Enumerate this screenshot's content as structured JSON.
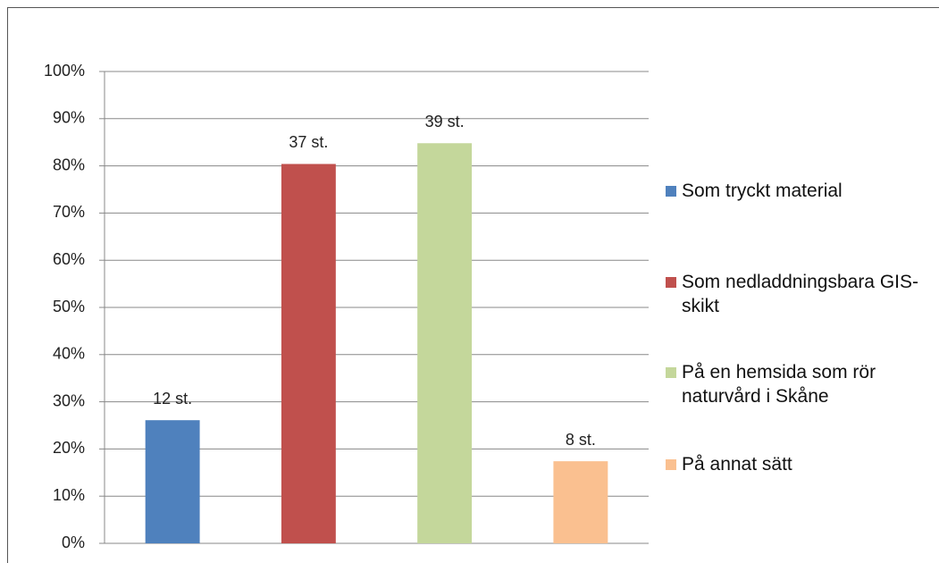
{
  "chart_data": {
    "type": "bar",
    "categories": [
      null
    ],
    "series": [
      {
        "name": "Som tryckt material",
        "color": "#4f81bd",
        "values": [
          26.1
        ]
      },
      {
        "name": "Som nedladdningsbara GIS-skikt",
        "color": "#c0504d",
        "values": [
          80.4
        ]
      },
      {
        "name": "På en hemsida som rör naturvård i Skåne",
        "color": "#c4d79b",
        "values": [
          84.8
        ]
      },
      {
        "name": "På annat sätt",
        "color": "#fac090",
        "values": [
          17.4
        ]
      }
    ],
    "count_labels": [
      "12 st.",
      "37 st.",
      "39 st.",
      "8 st."
    ],
    "ylim": [
      0,
      100
    ],
    "yticks": [
      {
        "value": 0,
        "label": "0%"
      },
      {
        "value": 10,
        "label": "10%"
      },
      {
        "value": 20,
        "label": "20%"
      },
      {
        "value": 30,
        "label": "30%"
      },
      {
        "value": 40,
        "label": "40%"
      },
      {
        "value": 50,
        "label": "50%"
      },
      {
        "value": 60,
        "label": "60%"
      },
      {
        "value": 70,
        "label": "70%"
      },
      {
        "value": 80,
        "label": "80%"
      },
      {
        "value": 90,
        "label": "90%"
      },
      {
        "value": 100,
        "label": "100%"
      }
    ],
    "grid": true,
    "legend": "right"
  }
}
